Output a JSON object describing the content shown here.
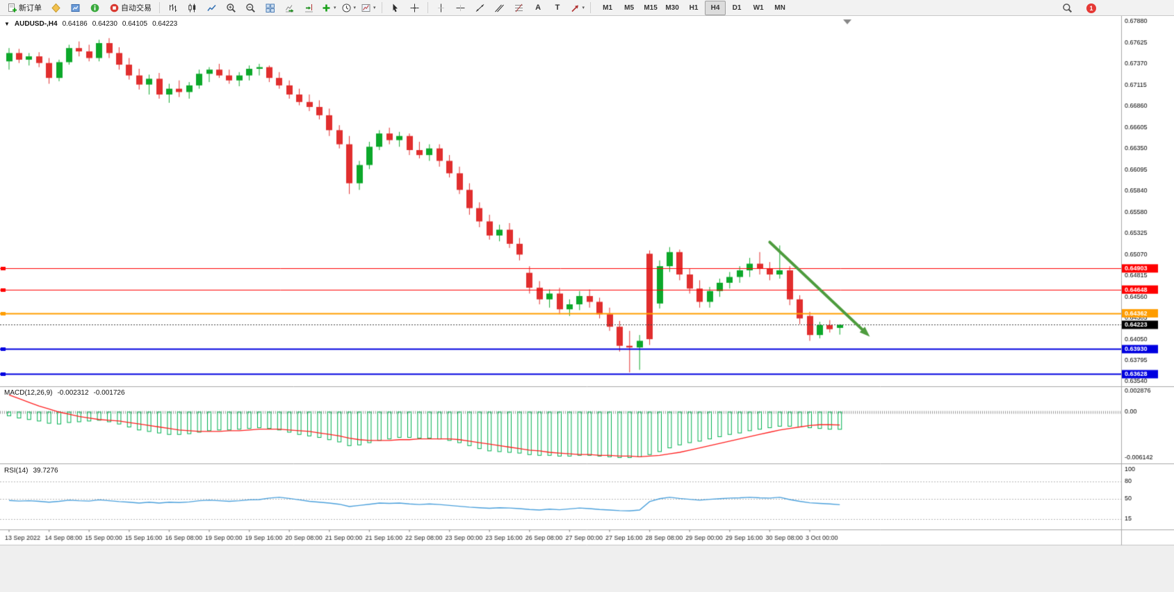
{
  "toolbar": {
    "new_order_label": "新订单",
    "autotrading_label": "自动交易",
    "text_tool_label": "A",
    "text_label_tool_label": "T",
    "caret": "▾",
    "timeframes": [
      "M1",
      "M5",
      "M15",
      "M30",
      "H1",
      "H4",
      "D1",
      "W1",
      "MN"
    ],
    "active_timeframe": "H4",
    "notification_count": "1"
  },
  "chart": {
    "collapse_arrow": "▼",
    "symbol": "AUDUSD-,H4",
    "open": "0.64186",
    "high": "0.64230",
    "low": "0.64105",
    "close": "0.64223"
  },
  "chart_data": {
    "type": "candlestick",
    "symbol": "AUDUSD-",
    "period": "H4",
    "price_top": 0.6788,
    "price_bottom": 0.6354,
    "y_axis_labels": [
      "0.67880",
      "0.67625",
      "0.67370",
      "0.67115",
      "0.66860",
      "0.66605",
      "0.66350",
      "0.66095",
      "0.65840",
      "0.65580",
      "0.65325",
      "0.65070",
      "0.64815",
      "0.64560",
      "0.64305",
      "0.64050",
      "0.63795",
      "0.63540"
    ],
    "x_label_every": 4,
    "x_labels": [
      "13 Sep 2022",
      "14 Sep 08:00",
      "15 Sep 00:00",
      "15 Sep 16:00",
      "16 Sep 08:00",
      "19 Sep 00:00",
      "19 Sep 16:00",
      "20 Sep 08:00",
      "21 Sep 00:00",
      "21 Sep 16:00",
      "22 Sep 08:00",
      "23 Sep 00:00",
      "23 Sep 16:00",
      "26 Sep 08:00",
      "27 Sep 00:00",
      "27 Sep 16:00",
      "28 Sep 08:00",
      "29 Sep 00:00",
      "29 Sep 16:00",
      "30 Sep 08:00",
      "3 Oct 00:00"
    ],
    "colors": {
      "up": "#0ca82a",
      "down": "#e12e2e",
      "macd_hist": "#00b050",
      "macd_signal": "#ff2020",
      "rsi": "#4aa0dc",
      "arrow": "#4e9c3e",
      "current_tag": "#000000"
    },
    "candles": [
      [
        0.674,
        0.6756,
        0.673,
        0.675
      ],
      [
        0.675,
        0.6755,
        0.6738,
        0.6742
      ],
      [
        0.6742,
        0.675,
        0.6735,
        0.6746
      ],
      [
        0.6746,
        0.6751,
        0.6733,
        0.6738
      ],
      [
        0.6738,
        0.6744,
        0.6713,
        0.672
      ],
      [
        0.672,
        0.6742,
        0.6716,
        0.6739
      ],
      [
        0.6739,
        0.676,
        0.6736,
        0.6756
      ],
      [
        0.6756,
        0.6764,
        0.6746,
        0.6752
      ],
      [
        0.6752,
        0.676,
        0.674,
        0.6744
      ],
      [
        0.6744,
        0.6766,
        0.674,
        0.6762
      ],
      [
        0.6762,
        0.6768,
        0.6744,
        0.675
      ],
      [
        0.675,
        0.6757,
        0.673,
        0.6736
      ],
      [
        0.6736,
        0.6744,
        0.6718,
        0.6723
      ],
      [
        0.6723,
        0.6731,
        0.6706,
        0.6712
      ],
      [
        0.6712,
        0.6724,
        0.67,
        0.6719
      ],
      [
        0.6719,
        0.6726,
        0.6695,
        0.67
      ],
      [
        0.67,
        0.6713,
        0.669,
        0.6707
      ],
      [
        0.6707,
        0.6717,
        0.6697,
        0.6703
      ],
      [
        0.6703,
        0.6715,
        0.6695,
        0.6711
      ],
      [
        0.6711,
        0.673,
        0.6707,
        0.6725
      ],
      [
        0.6725,
        0.6733,
        0.6715,
        0.673
      ],
      [
        0.673,
        0.6737,
        0.672,
        0.6723
      ],
      [
        0.6723,
        0.673,
        0.6713,
        0.6717
      ],
      [
        0.6717,
        0.6727,
        0.671,
        0.6723
      ],
      [
        0.6723,
        0.6735,
        0.6717,
        0.6731
      ],
      [
        0.6731,
        0.6737,
        0.6723,
        0.6733
      ],
      [
        0.6733,
        0.6735,
        0.6715,
        0.672
      ],
      [
        0.672,
        0.6727,
        0.6707,
        0.6711
      ],
      [
        0.6711,
        0.6717,
        0.6695,
        0.67
      ],
      [
        0.67,
        0.6707,
        0.6687,
        0.6691
      ],
      [
        0.6691,
        0.67,
        0.668,
        0.6685
      ],
      [
        0.6685,
        0.6693,
        0.667,
        0.6675
      ],
      [
        0.6675,
        0.6683,
        0.665,
        0.6657
      ],
      [
        0.6657,
        0.6663,
        0.6635,
        0.664
      ],
      [
        0.664,
        0.665,
        0.658,
        0.6593
      ],
      [
        0.6593,
        0.662,
        0.6585,
        0.6615
      ],
      [
        0.6615,
        0.6643,
        0.661,
        0.6637
      ],
      [
        0.6637,
        0.6657,
        0.6633,
        0.6653
      ],
      [
        0.6653,
        0.666,
        0.664,
        0.6645
      ],
      [
        0.6645,
        0.6655,
        0.6637,
        0.665
      ],
      [
        0.665,
        0.6653,
        0.6627,
        0.6633
      ],
      [
        0.6633,
        0.6643,
        0.6623,
        0.6627
      ],
      [
        0.6627,
        0.664,
        0.662,
        0.6635
      ],
      [
        0.6635,
        0.664,
        0.6613,
        0.662
      ],
      [
        0.662,
        0.6627,
        0.66,
        0.6605
      ],
      [
        0.6605,
        0.6613,
        0.658,
        0.6585
      ],
      [
        0.6585,
        0.6593,
        0.6555,
        0.6563
      ],
      [
        0.6563,
        0.657,
        0.654,
        0.6547
      ],
      [
        0.6547,
        0.6555,
        0.6525,
        0.653
      ],
      [
        0.653,
        0.6543,
        0.6523,
        0.6537
      ],
      [
        0.6537,
        0.6545,
        0.6515,
        0.652
      ],
      [
        0.652,
        0.6527,
        0.65,
        0.6507
      ],
      [
        0.6485,
        0.6493,
        0.646,
        0.6467
      ],
      [
        0.6467,
        0.6475,
        0.6447,
        0.6453
      ],
      [
        0.6453,
        0.6465,
        0.6443,
        0.646
      ],
      [
        0.646,
        0.6467,
        0.6435,
        0.6441
      ],
      [
        0.6441,
        0.6453,
        0.6433,
        0.6447
      ],
      [
        0.6447,
        0.6463,
        0.644,
        0.6457
      ],
      [
        0.6457,
        0.6465,
        0.6443,
        0.645
      ],
      [
        0.645,
        0.6455,
        0.643,
        0.6435
      ],
      [
        0.6435,
        0.6443,
        0.6415,
        0.642
      ],
      [
        0.642,
        0.6427,
        0.639,
        0.6397
      ],
      [
        0.6397,
        0.6415,
        0.6365,
        0.6395
      ],
      [
        0.6395,
        0.641,
        0.6368,
        0.6403
      ],
      [
        0.6508,
        0.6512,
        0.6398,
        0.6405
      ],
      [
        0.6448,
        0.65,
        0.6442,
        0.6493
      ],
      [
        0.6493,
        0.6516,
        0.6486,
        0.651
      ],
      [
        0.651,
        0.6513,
        0.6476,
        0.6483
      ],
      [
        0.6483,
        0.649,
        0.646,
        0.6466
      ],
      [
        0.6466,
        0.6476,
        0.6443,
        0.645
      ],
      [
        0.645,
        0.6468,
        0.6443,
        0.6463
      ],
      [
        0.6463,
        0.6478,
        0.6456,
        0.6473
      ],
      [
        0.6473,
        0.6486,
        0.6466,
        0.648
      ],
      [
        0.648,
        0.6493,
        0.6473,
        0.6488
      ],
      [
        0.6488,
        0.6503,
        0.648,
        0.6496
      ],
      [
        0.6496,
        0.651,
        0.6483,
        0.649
      ],
      [
        0.649,
        0.6498,
        0.6476,
        0.6483
      ],
      [
        0.6483,
        0.6518,
        0.6478,
        0.6488
      ],
      [
        0.6488,
        0.6493,
        0.6446,
        0.6453
      ],
      [
        0.6453,
        0.6458,
        0.6423,
        0.643
      ],
      [
        0.6433,
        0.6438,
        0.6403,
        0.641
      ],
      [
        0.641,
        0.6426,
        0.6406,
        0.6422
      ],
      [
        0.6422,
        0.6428,
        0.6413,
        0.6417
      ],
      [
        0.64186,
        0.6423,
        0.64105,
        0.64223
      ]
    ],
    "hlines": [
      {
        "price": 0.64903,
        "label": "0.64903",
        "color": "#ff0000",
        "width": 1
      },
      {
        "price": 0.64648,
        "label": "0.64648",
        "color": "#ff0000",
        "width": 1
      },
      {
        "price": 0.64362,
        "label": "0.64362",
        "color": "#ff9d00",
        "width": 2
      },
      {
        "price": 0.6393,
        "label": "0.63930",
        "color": "#0000e0",
        "width": 2
      },
      {
        "price": 0.63628,
        "label": "0.63628",
        "color": "#0000e0",
        "width": 2
      }
    ],
    "current_price": {
      "value": 0.64223,
      "label": "0.64223"
    },
    "trend_arrow": {
      "from_index": 76,
      "from_price": 0.6522,
      "to_index": 86,
      "to_price": 0.6408
    },
    "macd": {
      "name": "MACD(12,26,9)",
      "main_value": "-0.002312",
      "signal_value": "-0.001726",
      "axis_labels": [
        "0.002876",
        "0.00",
        "-0.006142"
      ],
      "histogram": [
        -0.0005,
        -0.0008,
        -0.001,
        -0.0012,
        -0.0015,
        -0.0016,
        -0.0014,
        -0.0013,
        -0.0012,
        -0.0011,
        -0.0013,
        -0.0016,
        -0.002,
        -0.0024,
        -0.0026,
        -0.0028,
        -0.003,
        -0.003,
        -0.0029,
        -0.0027,
        -0.0025,
        -0.0024,
        -0.0024,
        -0.0023,
        -0.0022,
        -0.0021,
        -0.0022,
        -0.0024,
        -0.0027,
        -0.003,
        -0.0032,
        -0.0034,
        -0.0037,
        -0.004,
        -0.0045,
        -0.0044,
        -0.0041,
        -0.0038,
        -0.0036,
        -0.0034,
        -0.0034,
        -0.0035,
        -0.0035,
        -0.0036,
        -0.0038,
        -0.0041,
        -0.0045,
        -0.0049,
        -0.0052,
        -0.0053,
        -0.0054,
        -0.0055,
        -0.0057,
        -0.0058,
        -0.0058,
        -0.0059,
        -0.0059,
        -0.0058,
        -0.0058,
        -0.0059,
        -0.006,
        -0.0061,
        -0.0061,
        -0.006,
        -0.0057,
        -0.0053,
        -0.0048,
        -0.0044,
        -0.0041,
        -0.0039,
        -0.0036,
        -0.0033,
        -0.003,
        -0.0028,
        -0.0025,
        -0.0023,
        -0.0021,
        -0.0019,
        -0.0019,
        -0.002,
        -0.0021,
        -0.0022,
        -0.0023,
        -0.002312
      ],
      "signal": [
        0.0023,
        0.0018,
        0.0013,
        0.0008,
        0.0004,
        0.0,
        -0.0003,
        -0.0006,
        -0.0008,
        -0.001,
        -0.0011,
        -0.0012,
        -0.0014,
        -0.0016,
        -0.0018,
        -0.002,
        -0.0022,
        -0.0024,
        -0.0025,
        -0.0026,
        -0.0026,
        -0.0026,
        -0.0025,
        -0.0025,
        -0.0024,
        -0.0023,
        -0.0023,
        -0.0023,
        -0.0024,
        -0.0025,
        -0.0026,
        -0.0028,
        -0.003,
        -0.0032,
        -0.0035,
        -0.0037,
        -0.0038,
        -0.0038,
        -0.0038,
        -0.0037,
        -0.0037,
        -0.0036,
        -0.0036,
        -0.0036,
        -0.0036,
        -0.0037,
        -0.0039,
        -0.0041,
        -0.0043,
        -0.0045,
        -0.0047,
        -0.0049,
        -0.0051,
        -0.0052,
        -0.0054,
        -0.0055,
        -0.0056,
        -0.0057,
        -0.0057,
        -0.0058,
        -0.0058,
        -0.0059,
        -0.0059,
        -0.006,
        -0.0059,
        -0.0058,
        -0.0056,
        -0.0054,
        -0.0051,
        -0.0048,
        -0.0045,
        -0.0042,
        -0.0039,
        -0.0036,
        -0.0033,
        -0.003,
        -0.0027,
        -0.0024,
        -0.0022,
        -0.002,
        -0.0018,
        -0.0017,
        -0.0017,
        -0.001726
      ]
    },
    "rsi": {
      "name": "RSI(14)",
      "value": "39.7276",
      "axis_labels": [
        "100",
        "80",
        "50",
        "15"
      ],
      "levels": [
        80,
        50,
        15
      ],
      "values": [
        47,
        46,
        46.5,
        45.5,
        44,
        45.5,
        47.5,
        46.5,
        46,
        48,
        46.5,
        45,
        44,
        42.5,
        44,
        42.5,
        44,
        43.5,
        44.5,
        46.5,
        47.5,
        46.5,
        45.5,
        46.5,
        48,
        48.5,
        51,
        52.5,
        50.5,
        48,
        45.5,
        44,
        42.5,
        40.5,
        36.5,
        38.5,
        40.5,
        42.5,
        42,
        42.5,
        41,
        40,
        41,
        40,
        38.5,
        37,
        35.5,
        34.5,
        33.5,
        34.5,
        34,
        33,
        31.5,
        30.5,
        32,
        31,
        32.5,
        34,
        33,
        31.5,
        30.5,
        29.5,
        29,
        30.5,
        45,
        50,
        52.5,
        50.5,
        49,
        47.5,
        49,
        50,
        51,
        51.5,
        52.5,
        51.5,
        51,
        52.5,
        48.5,
        45.5,
        43,
        42,
        41,
        39.7276
      ]
    }
  }
}
